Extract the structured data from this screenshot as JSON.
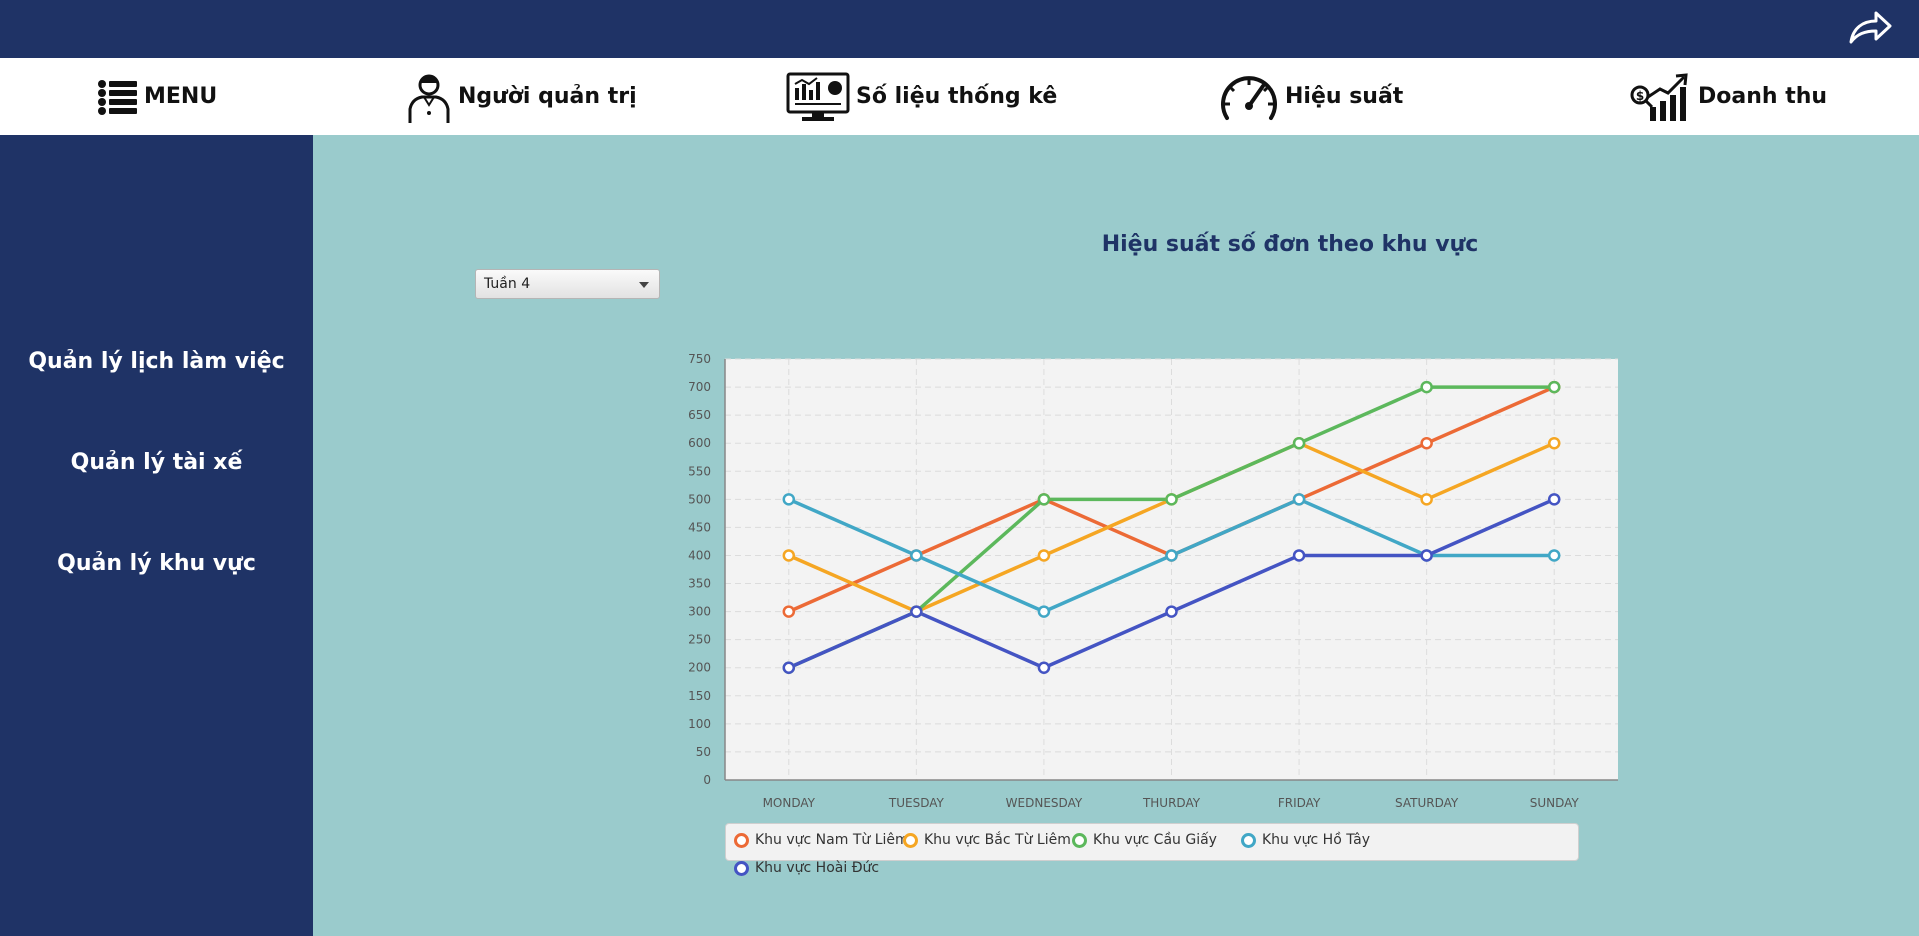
{
  "header": {
    "logout_icon": "share-arrow-icon"
  },
  "nav": {
    "menu": {
      "label": "MENU",
      "icon": "list-icon"
    },
    "items": [
      {
        "label": "Người quản trị",
        "icon": "admin-person-icon"
      },
      {
        "label": "Số liệu thống kê",
        "icon": "statistics-monitor-icon"
      },
      {
        "label": "Hiệu suất",
        "icon": "speedometer-icon"
      },
      {
        "label": "Doanh thu",
        "icon": "revenue-growth-icon"
      }
    ]
  },
  "sidebar": {
    "items": [
      {
        "label": "Quản lý lịch làm việc"
      },
      {
        "label": "Quản lý tài xế"
      },
      {
        "label": "Quản lý khu vực"
      }
    ]
  },
  "week_select": {
    "value": "Tuần 4"
  },
  "chart_title": "Hiệu suất số đơn theo khu vực",
  "chart_data": {
    "type": "line",
    "title": "Hiệu suất số đơn theo khu vực",
    "xlabel": "",
    "ylabel": "",
    "categories": [
      "MONDAY",
      "TUESDAY",
      "WEDNESDAY",
      "THURDAY",
      "FRIDAY",
      "SATURDAY",
      "SUNDAY"
    ],
    "ylim": [
      0,
      750
    ],
    "yticks": [
      0,
      50,
      100,
      150,
      200,
      250,
      300,
      350,
      400,
      450,
      500,
      550,
      600,
      650,
      700,
      750
    ],
    "grid": true,
    "legend_position": "bottom",
    "series": [
      {
        "name": "Khu vực Nam Từ Liêm",
        "color": "#ec6a36",
        "values": [
          300,
          400,
          500,
          400,
          500,
          600,
          700
        ]
      },
      {
        "name": "Khu vực Bắc Từ Liêm",
        "color": "#f5a623",
        "values": [
          400,
          300,
          400,
          500,
          600,
          500,
          600
        ]
      },
      {
        "name": "Khu vực Cầu Giấy",
        "color": "#5cb85c",
        "values": [
          200,
          300,
          500,
          500,
          600,
          700,
          700
        ]
      },
      {
        "name": "Khu vực Hồ Tây",
        "color": "#41a7c6",
        "values": [
          500,
          400,
          300,
          400,
          500,
          400,
          400
        ]
      },
      {
        "name": "Khu vực Hoài Đức",
        "color": "#4454c3",
        "values": [
          200,
          300,
          200,
          300,
          400,
          400,
          500
        ]
      }
    ]
  }
}
